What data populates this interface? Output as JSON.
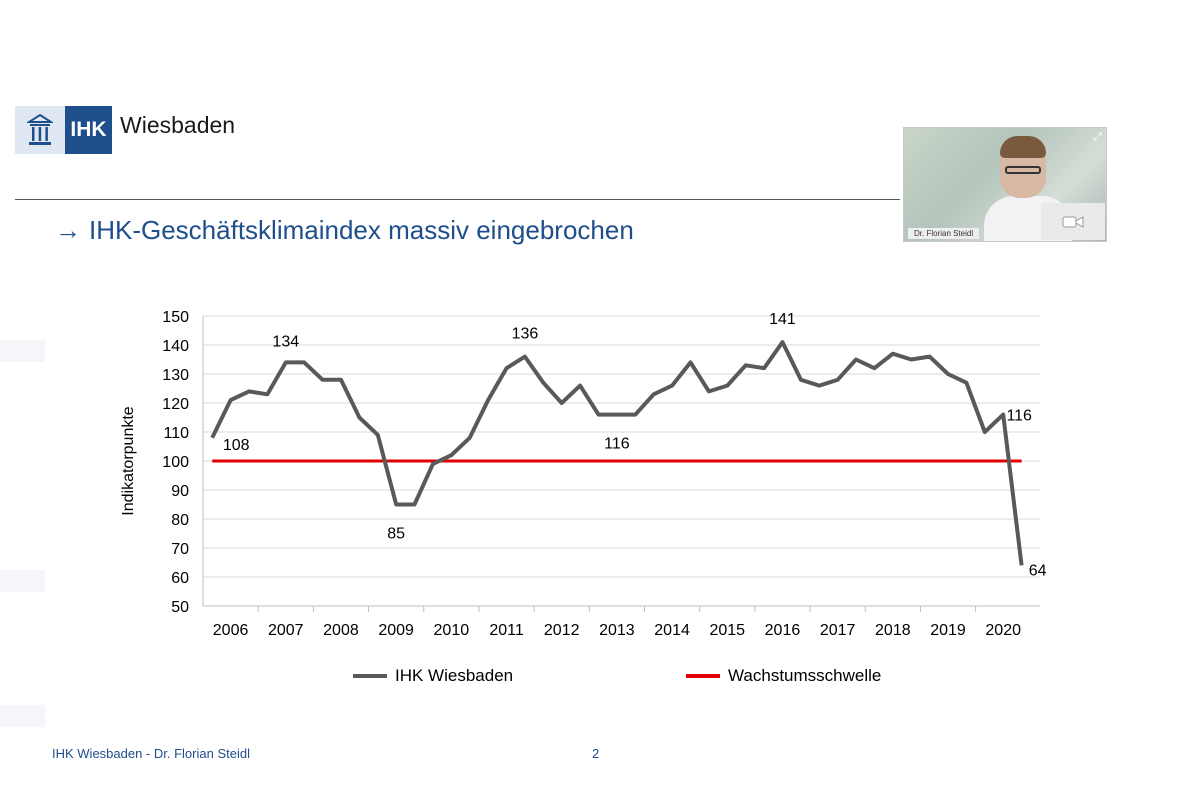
{
  "header": {
    "logo_text": "IHK",
    "logo_city": "Wiesbaden"
  },
  "title": {
    "arrow": "→",
    "text": "IHK-Geschäftsklimaindex massiv eingebrochen"
  },
  "video": {
    "participant_name": "Dr. Florian Steidl"
  },
  "footer": {
    "left": "IHK Wiesbaden - Dr. Florian Steidl",
    "page": "2"
  },
  "colors": {
    "brand": "#1f4e8c",
    "series_main": "#595959",
    "threshold": "#e00000"
  },
  "chart_data": {
    "type": "line",
    "ylabel": "Indikatorpunkte",
    "ylim": [
      50,
      150
    ],
    "yticks": [
      50,
      60,
      70,
      80,
      90,
      100,
      110,
      120,
      130,
      140,
      150
    ],
    "years": [
      "2006",
      "2007",
      "2008",
      "2009",
      "2010",
      "2011",
      "2012",
      "2013",
      "2014",
      "2015",
      "2016",
      "2017",
      "2018",
      "2019",
      "2020"
    ],
    "grid": true,
    "legend_position": "bottom",
    "series": [
      {
        "name": "IHK Wiesbaden",
        "values": [
          108,
          121,
          124,
          123,
          134,
          134,
          128,
          128,
          115,
          109,
          85,
          85,
          99,
          102,
          108,
          121,
          132,
          136,
          127,
          120,
          126,
          116,
          116,
          116,
          123,
          126,
          134,
          124,
          126,
          133,
          132,
          141,
          128,
          126,
          128,
          135,
          132,
          137,
          135,
          136,
          130,
          127,
          110,
          116,
          64
        ]
      },
      {
        "name": "Wachstumsschwelle",
        "values": [
          100,
          100
        ]
      }
    ],
    "annotations": [
      {
        "index": 0,
        "text": "108"
      },
      {
        "index": 4,
        "text": "134"
      },
      {
        "index": 10,
        "text": "85"
      },
      {
        "index": 17,
        "text": "136"
      },
      {
        "index": 22,
        "text": "116"
      },
      {
        "index": 31,
        "text": "141"
      },
      {
        "index": 43,
        "text": "116"
      },
      {
        "index": 44,
        "text": "64"
      }
    ]
  }
}
